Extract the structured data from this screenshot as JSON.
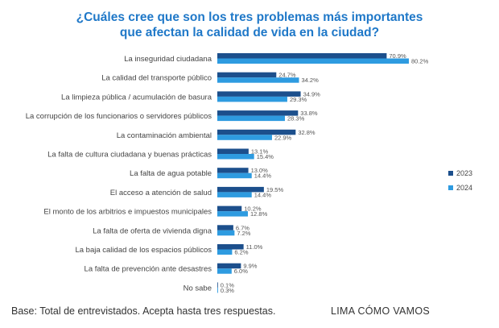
{
  "title_line1": "¿Cuáles cree que son los tres problemas más importantes",
  "title_line2": "que afectan la calidad de vida en la ciudad?",
  "footer_note": "Base: Total de entrevistados. Acepta hasta tres respuestas.",
  "footer_brand": "LIMA CÓMO VAMOS",
  "colors": {
    "series_2023": "#1c4f8c",
    "series_2024": "#2e9be0"
  },
  "chart_data": {
    "type": "bar",
    "orientation": "horizontal",
    "categories": [
      "La inseguridad ciudadana",
      "La calidad del transporte público",
      "La limpieza pública / acumulación de basura",
      "La corrupción de los funcionarios o servidores públicos",
      "La contaminación ambiental",
      "La falta de cultura ciudadana y buenas prácticas",
      "La falta de agua potable",
      "El acceso a atención de salud",
      "El monto de los arbitrios e impuestos municipales",
      "La falta de oferta de vivienda digna",
      "La baja calidad de los espacios públicos",
      "La falta de prevención ante desastres",
      "No sabe"
    ],
    "series": [
      {
        "name": "2023",
        "values": [
          70.9,
          24.7,
          34.9,
          33.8,
          32.8,
          13.1,
          13.0,
          19.5,
          10.2,
          6.7,
          11.0,
          9.9,
          0.1
        ],
        "labels": [
          "70.9%",
          "24.7%",
          "34.9%",
          "33.8%",
          "32.8%",
          "13.1%",
          "13.0%",
          "19.5%",
          "10.2%",
          "6.7%",
          "11.0%",
          "9.9%",
          "0.1%"
        ]
      },
      {
        "name": "2024",
        "values": [
          80.2,
          34.2,
          29.3,
          28.3,
          22.9,
          15.4,
          14.4,
          14.4,
          12.8,
          7.2,
          6.2,
          6.0,
          0.3
        ],
        "labels": [
          "80.2%",
          "34.2%",
          "29.3%",
          "28.3%",
          "22.9%",
          "15.4%",
          "14.4%",
          "14.4%",
          "12.8%",
          "7.2%",
          "6.2%",
          "6.0%",
          "0.3%"
        ]
      }
    ],
    "legend_position": "right"
  }
}
